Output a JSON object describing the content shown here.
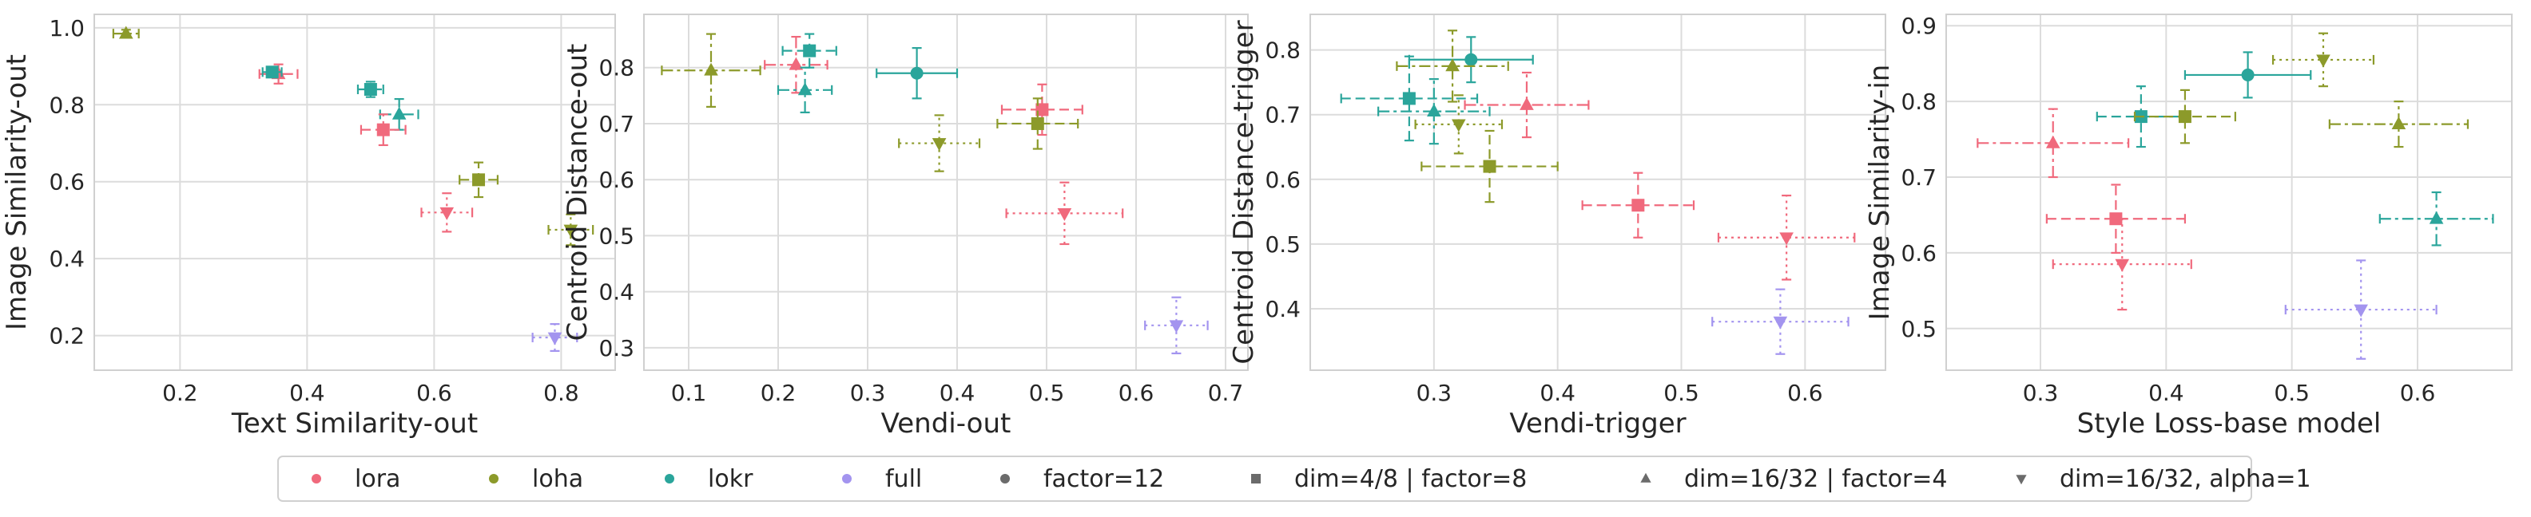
{
  "colors": {
    "lora": "#f0697c",
    "loha": "#8c9a2a",
    "lokr": "#2aa59b",
    "full": "#a394ef",
    "neutral": "#6b6b6b",
    "grid": "#dcdcdc",
    "frame": "#d0d0d0"
  },
  "legend": {
    "algos": [
      {
        "key": "lora",
        "label": "lora"
      },
      {
        "key": "loha",
        "label": "loha"
      },
      {
        "key": "lokr",
        "label": "lokr"
      },
      {
        "key": "full",
        "label": "full"
      }
    ],
    "configs": [
      {
        "key": "c",
        "label": "factor=12",
        "marker": "circle"
      },
      {
        "key": "s",
        "label": "dim=4/8 | factor=8",
        "marker": "square"
      },
      {
        "key": "t",
        "label": "dim=16/32 | factor=4",
        "marker": "triangle-up"
      },
      {
        "key": "v",
        "label": "dim=16/32, alpha=1",
        "marker": "triangle-down"
      }
    ]
  },
  "chart_data": [
    {
      "type": "scatter",
      "xlabel": "Text Similarity-out",
      "ylabel": "Image Similarity-out",
      "xlim": [
        0.065,
        0.885
      ],
      "ylim": [
        0.11,
        1.035
      ],
      "xticks": [
        0.2,
        0.4,
        0.6,
        0.8
      ],
      "xtick_labels": [
        "0.2",
        "0.4",
        "0.6",
        "0.8"
      ],
      "yticks": [
        0.2,
        0.4,
        0.6,
        0.8,
        1.0
      ],
      "ytick_labels": [
        "0.2",
        "0.4",
        "0.6",
        "0.8",
        "1.0"
      ],
      "grid": true,
      "points": [
        {
          "algo": "loha",
          "config": "t",
          "x": 0.115,
          "y": 0.985,
          "xerr": 0.02,
          "yerr": 0.01
        },
        {
          "algo": "lora",
          "config": "t",
          "x": 0.355,
          "y": 0.88,
          "xerr": 0.03,
          "yerr": 0.025
        },
        {
          "algo": "lokr",
          "config": "s",
          "x": 0.345,
          "y": 0.885,
          "xerr": 0.015,
          "yerr": 0.01
        },
        {
          "algo": "lokr",
          "config": "s",
          "x": 0.5,
          "y": 0.84,
          "xerr": 0.02,
          "yerr": 0.02
        },
        {
          "algo": "lokr",
          "config": "t",
          "x": 0.545,
          "y": 0.775,
          "xerr": 0.03,
          "yerr": 0.04
        },
        {
          "algo": "lora",
          "config": "s",
          "x": 0.52,
          "y": 0.735,
          "xerr": 0.035,
          "yerr": 0.04
        },
        {
          "algo": "loha",
          "config": "s",
          "x": 0.67,
          "y": 0.605,
          "xerr": 0.03,
          "yerr": 0.045
        },
        {
          "algo": "lora",
          "config": "v",
          "x": 0.62,
          "y": 0.52,
          "xerr": 0.04,
          "yerr": 0.05
        },
        {
          "algo": "loha",
          "config": "v",
          "x": 0.815,
          "y": 0.475,
          "xerr": 0.035,
          "yerr": 0.04
        },
        {
          "algo": "full",
          "config": "v",
          "x": 0.79,
          "y": 0.195,
          "xerr": 0.035,
          "yerr": 0.035
        }
      ]
    },
    {
      "type": "scatter",
      "xlabel": "Vendi-out",
      "ylabel": "Centroid Distance-out",
      "xlim": [
        0.05,
        0.725
      ],
      "ylim": [
        0.26,
        0.895
      ],
      "xticks": [
        0.1,
        0.2,
        0.3,
        0.4,
        0.5,
        0.6,
        0.7
      ],
      "xtick_labels": [
        "0.1",
        "0.2",
        "0.3",
        "0.4",
        "0.5",
        "0.6",
        "0.7"
      ],
      "yticks": [
        0.3,
        0.4,
        0.5,
        0.6,
        0.7,
        0.8
      ],
      "ytick_labels": [
        "0.3",
        "0.4",
        "0.5",
        "0.6",
        "0.7",
        "0.8"
      ],
      "grid": true,
      "points": [
        {
          "algo": "loha",
          "config": "t",
          "x": 0.125,
          "y": 0.795,
          "xerr": 0.055,
          "yerr": 0.065
        },
        {
          "algo": "lora",
          "config": "t",
          "x": 0.22,
          "y": 0.805,
          "xerr": 0.035,
          "yerr": 0.05
        },
        {
          "algo": "lokr",
          "config": "s",
          "x": 0.235,
          "y": 0.83,
          "xerr": 0.03,
          "yerr": 0.03
        },
        {
          "algo": "lokr",
          "config": "t",
          "x": 0.23,
          "y": 0.76,
          "xerr": 0.03,
          "yerr": 0.04
        },
        {
          "algo": "lokr",
          "config": "c",
          "x": 0.355,
          "y": 0.79,
          "xerr": 0.045,
          "yerr": 0.045
        },
        {
          "algo": "lora",
          "config": "s",
          "x": 0.495,
          "y": 0.725,
          "xerr": 0.045,
          "yerr": 0.045
        },
        {
          "algo": "loha",
          "config": "s",
          "x": 0.49,
          "y": 0.7,
          "xerr": 0.045,
          "yerr": 0.045
        },
        {
          "algo": "loha",
          "config": "v",
          "x": 0.38,
          "y": 0.665,
          "xerr": 0.045,
          "yerr": 0.05
        },
        {
          "algo": "lora",
          "config": "v",
          "x": 0.52,
          "y": 0.54,
          "xerr": 0.065,
          "yerr": 0.055
        },
        {
          "algo": "full",
          "config": "v",
          "x": 0.645,
          "y": 0.34,
          "xerr": 0.035,
          "yerr": 0.05
        }
      ]
    },
    {
      "type": "scatter",
      "xlabel": "Vendi-trigger",
      "ylabel": "Centroid Distance-trigger",
      "xlim": [
        0.2,
        0.665
      ],
      "ylim": [
        0.305,
        0.855
      ],
      "xticks": [
        0.3,
        0.4,
        0.5,
        0.6
      ],
      "xtick_labels": [
        "0.3",
        "0.4",
        "0.5",
        "0.6"
      ],
      "yticks": [
        0.4,
        0.5,
        0.6,
        0.7,
        0.8
      ],
      "ytick_labels": [
        "0.4",
        "0.5",
        "0.6",
        "0.7",
        "0.8"
      ],
      "grid": true,
      "points": [
        {
          "algo": "lokr",
          "config": "c",
          "x": 0.33,
          "y": 0.785,
          "xerr": 0.05,
          "yerr": 0.035
        },
        {
          "algo": "loha",
          "config": "t",
          "x": 0.315,
          "y": 0.775,
          "xerr": 0.045,
          "yerr": 0.055
        },
        {
          "algo": "lokr",
          "config": "s",
          "x": 0.28,
          "y": 0.725,
          "xerr": 0.055,
          "yerr": 0.065
        },
        {
          "algo": "lora",
          "config": "t",
          "x": 0.375,
          "y": 0.715,
          "xerr": 0.05,
          "yerr": 0.05
        },
        {
          "algo": "lokr",
          "config": "t",
          "x": 0.3,
          "y": 0.705,
          "xerr": 0.045,
          "yerr": 0.05
        },
        {
          "algo": "loha",
          "config": "v",
          "x": 0.32,
          "y": 0.685,
          "xerr": 0.035,
          "yerr": 0.045
        },
        {
          "algo": "loha",
          "config": "s",
          "x": 0.345,
          "y": 0.62,
          "xerr": 0.055,
          "yerr": 0.055
        },
        {
          "algo": "lora",
          "config": "s",
          "x": 0.465,
          "y": 0.56,
          "xerr": 0.045,
          "yerr": 0.05
        },
        {
          "algo": "lora",
          "config": "v",
          "x": 0.585,
          "y": 0.51,
          "xerr": 0.055,
          "yerr": 0.065
        },
        {
          "algo": "full",
          "config": "v",
          "x": 0.58,
          "y": 0.38,
          "xerr": 0.055,
          "yerr": 0.05
        }
      ]
    },
    {
      "type": "scatter",
      "xlabel": "Style Loss-base model",
      "ylabel": "Image Similarity-in",
      "xlim": [
        0.225,
        0.675
      ],
      "ylim": [
        0.445,
        0.915
      ],
      "xticks": [
        0.3,
        0.4,
        0.5,
        0.6
      ],
      "xtick_labels": [
        "0.3",
        "0.4",
        "0.5",
        "0.6"
      ],
      "yticks": [
        0.5,
        0.6,
        0.7,
        0.8,
        0.9
      ],
      "ytick_labels": [
        "0.5",
        "0.6",
        "0.7",
        "0.8",
        "0.9"
      ],
      "grid": true,
      "points": [
        {
          "algo": "loha",
          "config": "v",
          "x": 0.525,
          "y": 0.855,
          "xerr": 0.04,
          "yerr": 0.035
        },
        {
          "algo": "lokr",
          "config": "c",
          "x": 0.465,
          "y": 0.835,
          "xerr": 0.05,
          "yerr": 0.03
        },
        {
          "algo": "lokr",
          "config": "s",
          "x": 0.38,
          "y": 0.78,
          "xerr": 0.035,
          "yerr": 0.04
        },
        {
          "algo": "loha",
          "config": "s",
          "x": 0.415,
          "y": 0.78,
          "xerr": 0.04,
          "yerr": 0.035
        },
        {
          "algo": "loha",
          "config": "t",
          "x": 0.585,
          "y": 0.77,
          "xerr": 0.055,
          "yerr": 0.03
        },
        {
          "algo": "lora",
          "config": "t",
          "x": 0.31,
          "y": 0.745,
          "xerr": 0.06,
          "yerr": 0.045
        },
        {
          "algo": "lora",
          "config": "s",
          "x": 0.36,
          "y": 0.645,
          "xerr": 0.055,
          "yerr": 0.045
        },
        {
          "algo": "lokr",
          "config": "t",
          "x": 0.615,
          "y": 0.645,
          "xerr": 0.045,
          "yerr": 0.035
        },
        {
          "algo": "lora",
          "config": "v",
          "x": 0.365,
          "y": 0.585,
          "xerr": 0.055,
          "yerr": 0.06
        },
        {
          "algo": "full",
          "config": "v",
          "x": 0.555,
          "y": 0.525,
          "xerr": 0.06,
          "yerr": 0.065
        }
      ]
    }
  ]
}
